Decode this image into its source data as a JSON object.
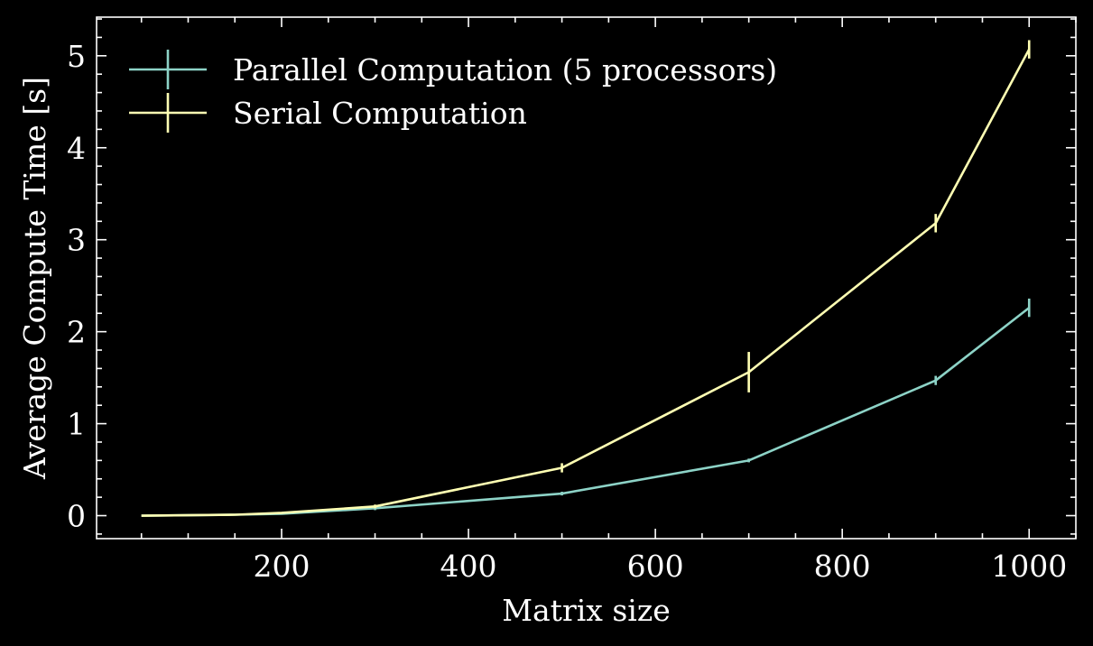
{
  "chart_data": {
    "type": "line",
    "title": "",
    "xlabel": "Matrix size",
    "ylabel": "Average Compute Time [s]",
    "xlim": [
      2,
      1050
    ],
    "ylim": [
      -0.25,
      5.42
    ],
    "xticks": [
      200,
      400,
      600,
      800,
      1000
    ],
    "yticks": [
      0,
      1,
      2,
      3,
      4,
      5
    ],
    "x_minor_step": 50,
    "y_minor_step": 0.2,
    "grid": false,
    "legend_position": "top-left",
    "series": [
      {
        "name": "Parallel Computation (5 processors)",
        "color": "#8dd3c7",
        "x": [
          50,
          150,
          200,
          300,
          500,
          700,
          900,
          1000
        ],
        "y": [
          0.0,
          0.01,
          0.02,
          0.08,
          0.24,
          0.6,
          1.47,
          2.26
        ],
        "yerr": [
          0.0,
          0.0,
          0.0,
          0.02,
          0.02,
          0.02,
          0.05,
          0.1
        ]
      },
      {
        "name": "Serial Computation",
        "color": "#ffffb3",
        "x": [
          50,
          150,
          200,
          300,
          500,
          700,
          900,
          1000
        ],
        "y": [
          0.0,
          0.01,
          0.03,
          0.1,
          0.52,
          1.56,
          3.18,
          5.07
        ],
        "yerr": [
          0.0,
          0.0,
          0.0,
          0.02,
          0.05,
          0.22,
          0.1,
          0.1
        ]
      }
    ]
  }
}
